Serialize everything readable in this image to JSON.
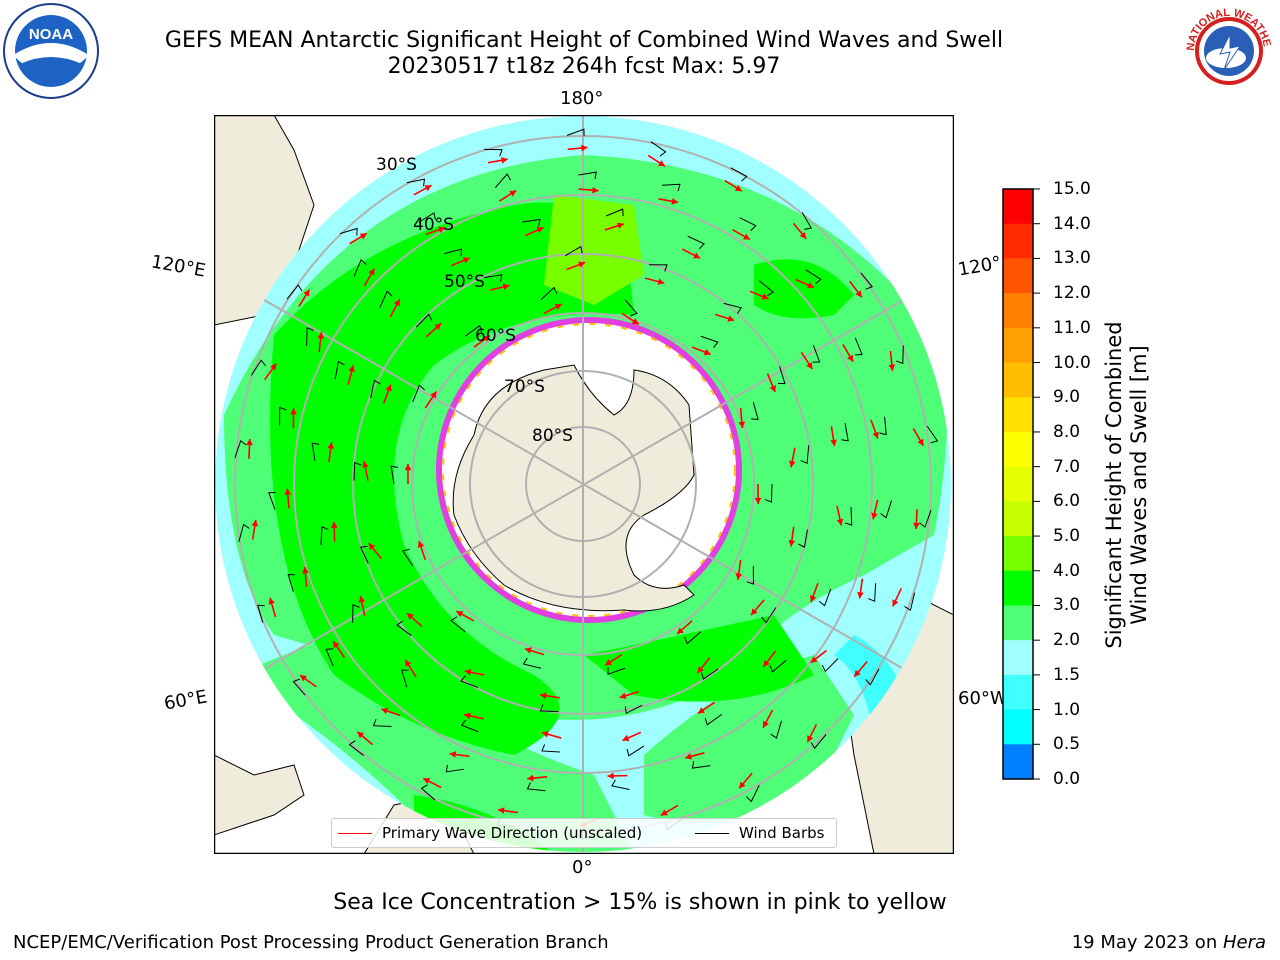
{
  "header": {
    "title_line1": "GEFS MEAN Antarctic Significant Height of Combined Wind Waves and Swell",
    "title_line2": "20230517 t18z 264h fcst   Max: 5.97"
  },
  "logos": {
    "left": "NOAA",
    "right": "NATIONAL WEATHER SERVICE"
  },
  "map": {
    "longitude_labels": {
      "top": "180°",
      "bottom": "0°",
      "upper_left": "120°E",
      "lower_left": "60°E",
      "upper_right": "120°",
      "lower_right": "60°W"
    },
    "latitude_labels": [
      "30°S",
      "40°S",
      "50°S",
      "60°S",
      "70°S",
      "80°S"
    ],
    "legend": {
      "wave_direction": "Primary Wave Direction (unscaled)",
      "wind_barbs": "Wind Barbs"
    },
    "colors": {
      "wave_arrow": "#ff0000",
      "wind_barb": "#000000",
      "land": "#efecdc",
      "ice_edge": "#e040e0"
    }
  },
  "colorbar": {
    "title_line1": "Significant Height of Combined",
    "title_line2": "Wind Waves and Swell [m]",
    "ticks": [
      "15.0",
      "14.0",
      "13.0",
      "12.0",
      "11.0",
      "10.0",
      "9.0",
      "8.0",
      "7.0",
      "6.0",
      "5.0",
      "4.0",
      "3.0",
      "2.0",
      "1.5",
      "1.0",
      "0.5",
      "0.0"
    ],
    "colors": [
      "#ff0000",
      "#ff2a00",
      "#ff5500",
      "#ff7f00",
      "#ffa000",
      "#ffbf00",
      "#ffe000",
      "#ffff00",
      "#e6ff00",
      "#c8ff00",
      "#78ff00",
      "#00ff00",
      "#50ff78",
      "#a0ffff",
      "#40ffff",
      "#00ffff",
      "#0080ff",
      "#0000ff"
    ]
  },
  "footer": {
    "ice_note": "Sea Ice Concentration > 15% is shown in pink to yellow",
    "left": "NCEP/EMC/Verification Post Processing Product Generation Branch",
    "right_date": "19 May 2023 on ",
    "right_host": "Hera"
  }
}
